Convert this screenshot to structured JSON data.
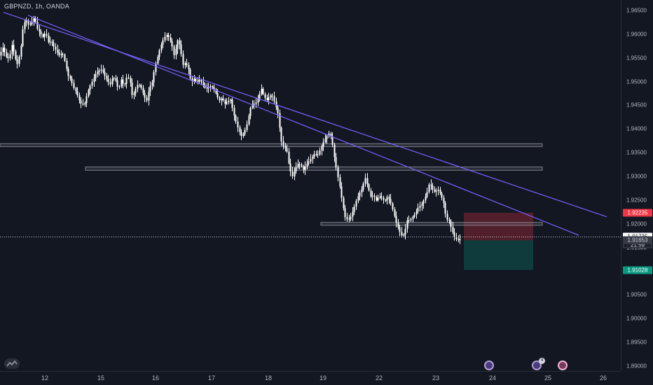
{
  "symbol_line": "GBPNZD, 1h, OANDA",
  "price_axis": {
    "labels": [
      "1.96500",
      "1.96000",
      "1.95500",
      "1.95000",
      "1.94500",
      "1.94000",
      "1.93500",
      "1.93000",
      "1.92500",
      "1.92000",
      "1.91500",
      "1.91000",
      "1.90500",
      "1.90000",
      "1.89500",
      "1.89000"
    ]
  },
  "time_axis": {
    "labels": [
      "12",
      "15",
      "16",
      "17",
      "18",
      "19",
      "22",
      "23",
      "24",
      "25",
      "26"
    ]
  },
  "tags": {
    "stop_loss": "1.92235",
    "last_price": "1.91735",
    "countdown": "21:59",
    "entry": "1.91653",
    "take_profit": "1.91028"
  },
  "colors": {
    "background": "#131722",
    "candle": "#ffffff",
    "trendline": "#7b61ff",
    "stop_zone": "#f23645",
    "target_zone": "#089981",
    "zone_box": "#787b86"
  },
  "icons": {
    "logo": "tradingview-logo-icon",
    "events": [
      "flag-event-icon",
      "flag-event-icon",
      "flag-event-icon"
    ],
    "event_badge": "4"
  },
  "chart_data": {
    "type": "candlestick",
    "symbol": "GBPNZD",
    "timeframe": "1h",
    "source": "OANDA",
    "ylim": [
      1.888,
      1.966
    ],
    "x_tick_labels": [
      "12",
      "15",
      "16",
      "17",
      "18",
      "19",
      "22",
      "23",
      "24",
      "25",
      "26"
    ],
    "price_path": [
      [
        0,
        1.9555
      ],
      [
        5,
        1.9572
      ],
      [
        10,
        1.9552
      ],
      [
        14,
        1.9548
      ],
      [
        18,
        1.9578
      ],
      [
        22,
        1.9556
      ],
      [
        25,
        1.9533
      ],
      [
        30,
        1.9563
      ],
      [
        34,
        1.9617
      ],
      [
        38,
        1.9632
      ],
      [
        42,
        1.9618
      ],
      [
        46,
        1.9625
      ],
      [
        50,
        1.9636
      ],
      [
        54,
        1.9612
      ],
      [
        58,
        1.9603
      ],
      [
        62,
        1.9594
      ],
      [
        66,
        1.9604
      ],
      [
        70,
        1.9583
      ],
      [
        74,
        1.9585
      ],
      [
        78,
        1.9573
      ],
      [
        82,
        1.9563
      ],
      [
        86,
        1.9555
      ],
      [
        90,
        1.9561
      ],
      [
        94,
        1.954
      ],
      [
        98,
        1.9513
      ],
      [
        102,
        1.9505
      ],
      [
        106,
        1.9487
      ],
      [
        110,
        1.9477
      ],
      [
        114,
        1.9461
      ],
      [
        118,
        1.945
      ],
      [
        122,
        1.9455
      ],
      [
        126,
        1.9478
      ],
      [
        130,
        1.9493
      ],
      [
        134,
        1.9504
      ],
      [
        138,
        1.9518
      ],
      [
        142,
        1.9523
      ],
      [
        146,
        1.9526
      ],
      [
        150,
        1.9513
      ],
      [
        154,
        1.9503
      ],
      [
        158,
        1.9493
      ],
      [
        162,
        1.951
      ],
      [
        166,
        1.9503
      ],
      [
        170,
        1.9483
      ],
      [
        174,
        1.9505
      ],
      [
        178,
        1.949
      ],
      [
        182,
        1.951
      ],
      [
        186,
        1.9507
      ],
      [
        190,
        1.9467
      ],
      [
        194,
        1.9483
      ],
      [
        198,
        1.9495
      ],
      [
        202,
        1.9489
      ],
      [
        206,
        1.9472
      ],
      [
        210,
        1.9458
      ],
      [
        214,
        1.9487
      ],
      [
        218,
        1.9498
      ],
      [
        222,
        1.9531
      ],
      [
        226,
        1.9553
      ],
      [
        230,
        1.9574
      ],
      [
        234,
        1.9588
      ],
      [
        238,
        1.96
      ],
      [
        242,
        1.9593
      ],
      [
        246,
        1.9579
      ],
      [
        250,
        1.9551
      ],
      [
        254,
        1.9589
      ],
      [
        258,
        1.9575
      ],
      [
        262,
        1.9535
      ],
      [
        266,
        1.954
      ],
      [
        270,
        1.9527
      ],
      [
        274,
        1.9498
      ],
      [
        278,
        1.9506
      ],
      [
        282,
        1.9499
      ],
      [
        286,
        1.9504
      ],
      [
        290,
        1.9495
      ],
      [
        294,
        1.9486
      ],
      [
        298,
        1.9487
      ],
      [
        302,
        1.9491
      ],
      [
        306,
        1.9485
      ],
      [
        310,
        1.9472
      ],
      [
        314,
        1.946
      ],
      [
        318,
        1.9466
      ],
      [
        322,
        1.9453
      ],
      [
        326,
        1.9458
      ],
      [
        330,
        1.9462
      ],
      [
        334,
        1.9434
      ],
      [
        338,
        1.9414
      ],
      [
        342,
        1.9396
      ],
      [
        346,
        1.9384
      ],
      [
        350,
        1.9395
      ],
      [
        354,
        1.9413
      ],
      [
        358,
        1.9444
      ],
      [
        362,
        1.9452
      ],
      [
        366,
        1.9455
      ],
      [
        370,
        1.9467
      ],
      [
        374,
        1.9485
      ],
      [
        378,
        1.9468
      ],
      [
        382,
        1.9461
      ],
      [
        386,
        1.9471
      ],
      [
        390,
        1.9469
      ],
      [
        394,
        1.945
      ],
      [
        398,
        1.9431
      ],
      [
        402,
        1.9377
      ],
      [
        406,
        1.9361
      ],
      [
        410,
        1.9357
      ],
      [
        414,
        1.9319
      ],
      [
        418,
        1.9299
      ],
      [
        422,
        1.9315
      ],
      [
        426,
        1.9326
      ],
      [
        430,
        1.9325
      ],
      [
        434,
        1.9314
      ],
      [
        438,
        1.9325
      ],
      [
        442,
        1.9332
      ],
      [
        446,
        1.934
      ],
      [
        450,
        1.9348
      ],
      [
        454,
        1.9344
      ],
      [
        458,
        1.9357
      ],
      [
        462,
        1.9371
      ],
      [
        466,
        1.9381
      ],
      [
        470,
        1.9391
      ],
      [
        474,
        1.9382
      ],
      [
        478,
        1.9342
      ],
      [
        482,
        1.9308
      ],
      [
        486,
        1.9278
      ],
      [
        490,
        1.9241
      ],
      [
        494,
        1.9212
      ],
      [
        498,
        1.9208
      ],
      [
        502,
        1.9216
      ],
      [
        506,
        1.9233
      ],
      [
        510,
        1.9252
      ],
      [
        514,
        1.9265
      ],
      [
        518,
        1.9275
      ],
      [
        522,
        1.9298
      ],
      [
        526,
        1.9278
      ],
      [
        530,
        1.9258
      ],
      [
        534,
        1.926
      ],
      [
        538,
        1.9249
      ],
      [
        542,
        1.9259
      ],
      [
        546,
        1.9255
      ],
      [
        550,
        1.9247
      ],
      [
        554,
        1.9258
      ],
      [
        558,
        1.9247
      ],
      [
        562,
        1.9227
      ],
      [
        566,
        1.9205
      ],
      [
        570,
        1.9189
      ],
      [
        574,
        1.9175
      ],
      [
        578,
        1.9179
      ],
      [
        582,
        1.9207
      ],
      [
        586,
        1.9208
      ],
      [
        590,
        1.9215
      ],
      [
        594,
        1.9222
      ],
      [
        598,
        1.9235
      ],
      [
        602,
        1.924
      ],
      [
        606,
        1.9251
      ],
      [
        610,
        1.9263
      ],
      [
        614,
        1.9287
      ],
      [
        618,
        1.9273
      ],
      [
        622,
        1.9267
      ],
      [
        626,
        1.9273
      ],
      [
        630,
        1.9261
      ],
      [
        634,
        1.9245
      ],
      [
        638,
        1.921
      ],
      [
        642,
        1.9206
      ],
      [
        646,
        1.9186
      ],
      [
        650,
        1.9171
      ],
      [
        654,
        1.9165
      ],
      [
        658,
        1.9168
      ]
    ],
    "levels": {
      "last_price": 1.91735,
      "stop_loss": 1.92235,
      "entry": 1.91653,
      "take_profit": 1.91028
    },
    "zones": [
      {
        "name": "support-resistance-1",
        "from_x": 0,
        "to_x": 774,
        "y_low": 1.9363,
        "y_high": 1.9369
      },
      {
        "name": "support-resistance-2",
        "from_x": 122,
        "to_x": 774,
        "y_low": 1.9313,
        "y_high": 1.932
      },
      {
        "name": "support-resistance-3",
        "from_x": 458,
        "to_x": 774,
        "y_low": 1.9197,
        "y_high": 1.9203
      }
    ],
    "trendlines": [
      {
        "name": "trendline-upper",
        "points": [
          [
            5,
            1.9646
          ],
          [
            866,
            1.9215
          ]
        ]
      },
      {
        "name": "trendline-lower",
        "points": [
          [
            40,
            1.964
          ],
          [
            826,
            1.9176
          ]
        ]
      }
    ],
    "position": {
      "type": "short",
      "x_start": 662,
      "x_end": 761,
      "entry": 1.91653,
      "stop": 1.92235,
      "target": 1.91028
    }
  }
}
